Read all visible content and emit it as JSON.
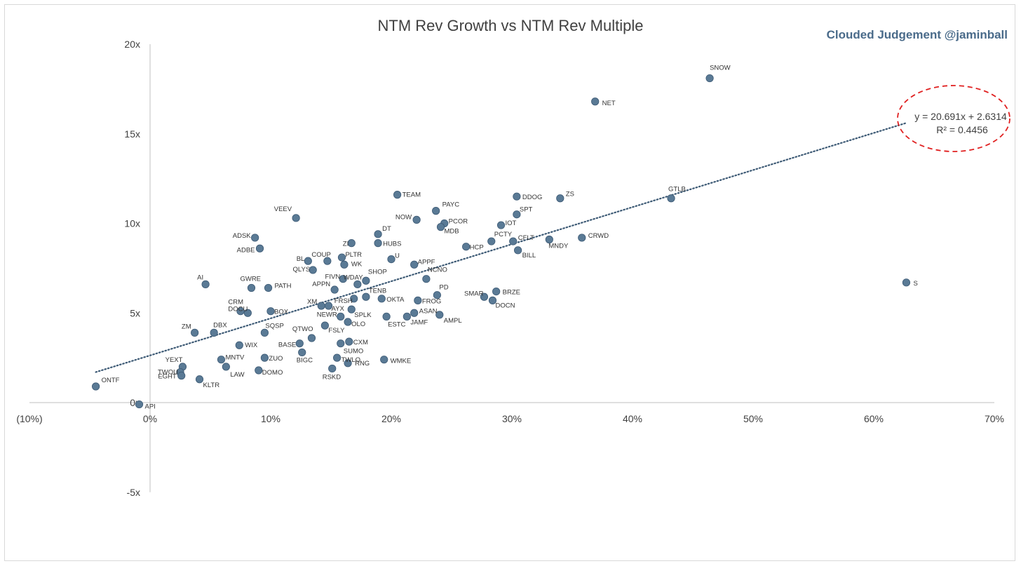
{
  "chart_data": {
    "type": "scatter",
    "title": "NTM Rev Growth vs NTM Rev Multiple",
    "watermark": "Clouded Judgement @jaminball",
    "xlabel": "",
    "ylabel": "",
    "xlim": [
      -0.1,
      0.7
    ],
    "ylim": [
      -5,
      20
    ],
    "x_ticks": [
      {
        "v": -0.1,
        "label": "(10%)"
      },
      {
        "v": 0.0,
        "label": "0%"
      },
      {
        "v": 0.1,
        "label": "10%"
      },
      {
        "v": 0.2,
        "label": "20%"
      },
      {
        "v": 0.3,
        "label": "30%"
      },
      {
        "v": 0.4,
        "label": "40%"
      },
      {
        "v": 0.5,
        "label": "50%"
      },
      {
        "v": 0.6,
        "label": "60%"
      },
      {
        "v": 0.7,
        "label": "70%"
      }
    ],
    "y_ticks": [
      {
        "v": 20,
        "label": "20x"
      },
      {
        "v": 15,
        "label": "15x"
      },
      {
        "v": 10,
        "label": "10x"
      },
      {
        "v": 5,
        "label": "5x"
      },
      {
        "v": 0,
        "label": "0x"
      },
      {
        "v": -5,
        "label": "-5x"
      }
    ],
    "grid": false,
    "point_color": "#5a7a95",
    "trendline": {
      "slope": 20.691,
      "intercept": 2.6314,
      "x_range": [
        -0.045,
        0.627
      ],
      "color": "#3d5a75",
      "style": "dotted",
      "equation": "y = 20.691x + 2.6314",
      "r_squared": "R² = 0.4456",
      "highlight_color": "#e02020"
    },
    "points": [
      {
        "name": "SNOW",
        "x": 0.464,
        "y": 18.1
      },
      {
        "name": "NET",
        "x": 0.369,
        "y": 16.8
      },
      {
        "name": "S",
        "x": 0.627,
        "y": 6.7
      },
      {
        "name": "GTLB",
        "x": 0.432,
        "y": 11.4
      },
      {
        "name": "ZS",
        "x": 0.34,
        "y": 11.4
      },
      {
        "name": "DDOG",
        "x": 0.304,
        "y": 11.5
      },
      {
        "name": "SPT",
        "x": 0.304,
        "y": 10.5
      },
      {
        "name": "IOT",
        "x": 0.291,
        "y": 9.9
      },
      {
        "name": "CRWD",
        "x": 0.358,
        "y": 9.2
      },
      {
        "name": "MNDY",
        "x": 0.331,
        "y": 9.1
      },
      {
        "name": "CFLT",
        "x": 0.301,
        "y": 9.0
      },
      {
        "name": "PCTY",
        "x": 0.283,
        "y": 9.0
      },
      {
        "name": "BILL",
        "x": 0.305,
        "y": 8.5
      },
      {
        "name": "HCP",
        "x": 0.262,
        "y": 8.7
      },
      {
        "name": "TEAM",
        "x": 0.205,
        "y": 11.6
      },
      {
        "name": "PAYC",
        "x": 0.237,
        "y": 10.7
      },
      {
        "name": "NOW",
        "x": 0.221,
        "y": 10.2
      },
      {
        "name": "PCOR",
        "x": 0.244,
        "y": 10.0
      },
      {
        "name": "MDB",
        "x": 0.241,
        "y": 9.8
      },
      {
        "name": "DT",
        "x": 0.189,
        "y": 9.4
      },
      {
        "name": "HUBS",
        "x": 0.189,
        "y": 8.9
      },
      {
        "name": "U",
        "x": 0.2,
        "y": 8.0
      },
      {
        "name": "APPF",
        "x": 0.219,
        "y": 7.7
      },
      {
        "name": "NCNO",
        "x": 0.229,
        "y": 6.9
      },
      {
        "name": "PD",
        "x": 0.238,
        "y": 6.0
      },
      {
        "name": "FROG",
        "x": 0.222,
        "y": 5.7
      },
      {
        "name": "ASAN",
        "x": 0.219,
        "y": 5.0
      },
      {
        "name": "AMPL",
        "x": 0.24,
        "y": 4.9
      },
      {
        "name": "JAMF",
        "x": 0.213,
        "y": 4.8
      },
      {
        "name": "ESTC",
        "x": 0.196,
        "y": 4.8
      },
      {
        "name": "SMAR",
        "x": 0.277,
        "y": 5.9
      },
      {
        "name": "BRZE",
        "x": 0.287,
        "y": 6.2
      },
      {
        "name": "DOCN",
        "x": 0.284,
        "y": 5.7
      },
      {
        "name": "VEEV",
        "x": 0.121,
        "y": 10.3
      },
      {
        "name": "ADSK",
        "x": 0.087,
        "y": 9.2
      },
      {
        "name": "ADBE",
        "x": 0.091,
        "y": 8.6
      },
      {
        "name": "ZI",
        "x": 0.167,
        "y": 8.9
      },
      {
        "name": "PLTR",
        "x": 0.159,
        "y": 8.1
      },
      {
        "name": "COUP",
        "x": 0.147,
        "y": 7.9
      },
      {
        "name": "BL",
        "x": 0.131,
        "y": 7.9
      },
      {
        "name": "WK",
        "x": 0.161,
        "y": 7.7
      },
      {
        "name": "QLYS",
        "x": 0.135,
        "y": 7.4
      },
      {
        "name": "SHOP",
        "x": 0.179,
        "y": 6.8
      },
      {
        "name": "WDAY",
        "x": 0.172,
        "y": 6.6
      },
      {
        "name": "FIVN",
        "x": 0.16,
        "y": 6.9
      },
      {
        "name": "APPN",
        "x": 0.153,
        "y": 6.3
      },
      {
        "name": "TENB",
        "x": 0.179,
        "y": 5.9
      },
      {
        "name": "OKTA",
        "x": 0.192,
        "y": 5.8
      },
      {
        "name": "FRSH",
        "x": 0.169,
        "y": 5.8
      },
      {
        "name": "XM",
        "x": 0.142,
        "y": 5.4
      },
      {
        "name": "AYX",
        "x": 0.148,
        "y": 5.4
      },
      {
        "name": "NEWR",
        "x": 0.158,
        "y": 4.8
      },
      {
        "name": "SPLK",
        "x": 0.167,
        "y": 5.2
      },
      {
        "name": "OLO",
        "x": 0.164,
        "y": 4.5
      },
      {
        "name": "FSLY",
        "x": 0.145,
        "y": 4.3
      },
      {
        "name": "QTWO",
        "x": 0.134,
        "y": 3.6
      },
      {
        "name": "BASE",
        "x": 0.124,
        "y": 3.3
      },
      {
        "name": "BIGC",
        "x": 0.126,
        "y": 2.8
      },
      {
        "name": "CXM",
        "x": 0.165,
        "y": 3.4
      },
      {
        "name": "SUMO",
        "x": 0.158,
        "y": 3.3
      },
      {
        "name": "TWLO",
        "x": 0.155,
        "y": 2.5
      },
      {
        "name": "RNG",
        "x": 0.164,
        "y": 2.2
      },
      {
        "name": "RSKD",
        "x": 0.151,
        "y": 1.9
      },
      {
        "name": "WMKE",
        "x": 0.194,
        "y": 2.4
      },
      {
        "name": "AI",
        "x": 0.046,
        "y": 6.6
      },
      {
        "name": "GWRE",
        "x": 0.084,
        "y": 6.4
      },
      {
        "name": "PATH",
        "x": 0.098,
        "y": 6.4
      },
      {
        "name": "DOCU",
        "x": 0.081,
        "y": 5.0
      },
      {
        "name": "CRM",
        "x": 0.075,
        "y": 5.1
      },
      {
        "name": "BOX",
        "x": 0.1,
        "y": 5.1
      },
      {
        "name": "SQSP",
        "x": 0.095,
        "y": 3.9
      },
      {
        "name": "ZM",
        "x": 0.037,
        "y": 3.9
      },
      {
        "name": "DBX",
        "x": 0.053,
        "y": 3.9
      },
      {
        "name": "WIX",
        "x": 0.074,
        "y": 3.2
      },
      {
        "name": "MNTV",
        "x": 0.059,
        "y": 2.4
      },
      {
        "name": "ZUO",
        "x": 0.095,
        "y": 2.5
      },
      {
        "name": "LAW",
        "x": 0.063,
        "y": 2.0
      },
      {
        "name": "DOMO",
        "x": 0.09,
        "y": 1.8
      },
      {
        "name": "YEXT",
        "x": 0.027,
        "y": 2.0
      },
      {
        "name": "TWOU",
        "x": 0.025,
        "y": 1.7
      },
      {
        "name": "EGHT",
        "x": 0.026,
        "y": 1.5
      },
      {
        "name": "KLTR",
        "x": 0.041,
        "y": 1.3
      },
      {
        "name": "ONTF",
        "x": -0.045,
        "y": 0.9
      },
      {
        "name": "API",
        "x": -0.009,
        "y": -0.1
      }
    ]
  }
}
